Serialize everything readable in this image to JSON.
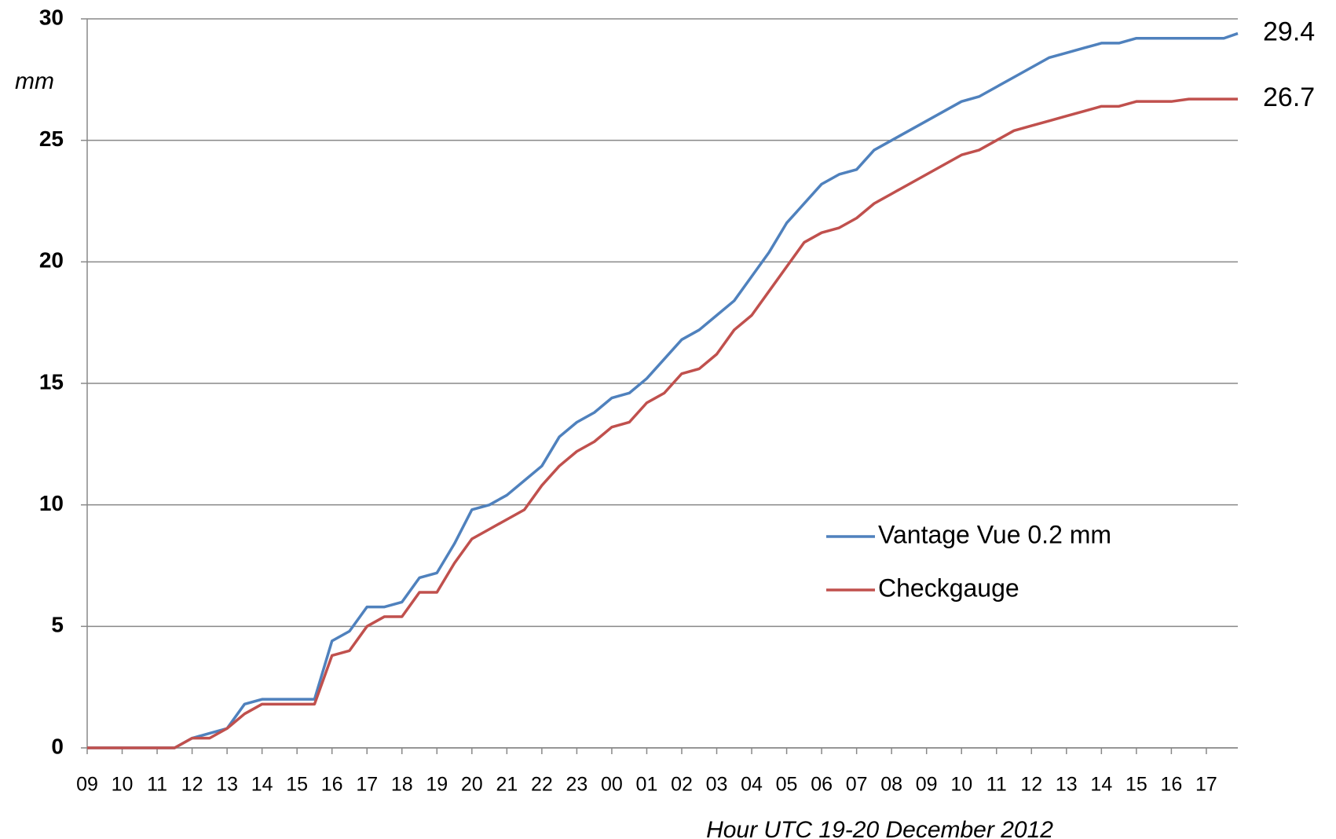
{
  "chart_data": {
    "type": "line",
    "y_label": "mm",
    "x_label": "Hour UTC 19-20 December 2012",
    "x": [
      0,
      2.5,
      3,
      3.5,
      4,
      4.5,
      5,
      6.5,
      7,
      7.5,
      8,
      8.5,
      9,
      9.5,
      10,
      10.5,
      11,
      11.5,
      12,
      12.5,
      13,
      13.5,
      14,
      14.5,
      15,
      15.5,
      16,
      16.5,
      17,
      17.5,
      18,
      18.5,
      19,
      19.5,
      20,
      20.5,
      21,
      21.5,
      22,
      22.5,
      23,
      23.5,
      24,
      24.5,
      25,
      25.5,
      26,
      26.5,
      27,
      27.5,
      28,
      28.5,
      29,
      29.5,
      30,
      30.5,
      31,
      31.5,
      32,
      32.5,
      32.9
    ],
    "series": [
      {
        "name": "Vantage Vue 0.2 mm",
        "color": "#4f81bd",
        "values": [
          0,
          0,
          0.4,
          0.6,
          0.8,
          1.8,
          2.0,
          2.0,
          4.4,
          4.8,
          5.8,
          5.8,
          6.0,
          7.0,
          7.2,
          8.4,
          9.8,
          10.0,
          10.4,
          11.0,
          11.6,
          12.8,
          13.4,
          13.8,
          14.4,
          14.6,
          15.2,
          16.0,
          16.8,
          17.2,
          17.8,
          18.4,
          19.4,
          20.4,
          21.6,
          22.4,
          23.2,
          23.6,
          23.8,
          24.6,
          25.0,
          25.4,
          25.8,
          26.2,
          26.6,
          26.8,
          27.2,
          27.6,
          28.0,
          28.4,
          28.6,
          28.8,
          29.0,
          29.0,
          29.2,
          29.2,
          29.2,
          29.2,
          29.2,
          29.2,
          29.4
        ]
      },
      {
        "name": "Checkgauge",
        "color": "#c0504d",
        "values": [
          0,
          0,
          0.4,
          0.4,
          0.8,
          1.4,
          1.8,
          1.8,
          3.8,
          4.0,
          5.0,
          5.4,
          5.4,
          6.4,
          6.4,
          7.6,
          8.6,
          9.0,
          9.4,
          9.8,
          10.8,
          11.6,
          12.2,
          12.6,
          13.2,
          13.4,
          14.2,
          14.6,
          15.4,
          15.6,
          16.2,
          17.2,
          17.8,
          18.8,
          19.8,
          20.8,
          21.2,
          21.4,
          21.8,
          22.4,
          22.8,
          23.2,
          23.6,
          24.0,
          24.4,
          24.6,
          25.0,
          25.4,
          25.6,
          25.8,
          26.0,
          26.2,
          26.4,
          26.4,
          26.6,
          26.6,
          26.6,
          26.7,
          26.7,
          26.7,
          26.7
        ]
      }
    ],
    "xlim": [
      0,
      32.9
    ],
    "xticks": [
      {
        "value": 0,
        "label": "09"
      },
      {
        "value": 1,
        "label": "10"
      },
      {
        "value": 2,
        "label": "11"
      },
      {
        "value": 3,
        "label": "12"
      },
      {
        "value": 4,
        "label": "13"
      },
      {
        "value": 5,
        "label": "14"
      },
      {
        "value": 6,
        "label": "15"
      },
      {
        "value": 7,
        "label": "16"
      },
      {
        "value": 8,
        "label": "17"
      },
      {
        "value": 9,
        "label": "18"
      },
      {
        "value": 10,
        "label": "19"
      },
      {
        "value": 11,
        "label": "20"
      },
      {
        "value": 12,
        "label": "21"
      },
      {
        "value": 13,
        "label": "22"
      },
      {
        "value": 14,
        "label": "23"
      },
      {
        "value": 15,
        "label": "00"
      },
      {
        "value": 16,
        "label": "01"
      },
      {
        "value": 17,
        "label": "02"
      },
      {
        "value": 18,
        "label": "03"
      },
      {
        "value": 19,
        "label": "04"
      },
      {
        "value": 20,
        "label": "05"
      },
      {
        "value": 21,
        "label": "06"
      },
      {
        "value": 22,
        "label": "07"
      },
      {
        "value": 23,
        "label": "08"
      },
      {
        "value": 24,
        "label": "09"
      },
      {
        "value": 25,
        "label": "10"
      },
      {
        "value": 26,
        "label": "11"
      },
      {
        "value": 27,
        "label": "12"
      },
      {
        "value": 28,
        "label": "13"
      },
      {
        "value": 29,
        "label": "14"
      },
      {
        "value": 30,
        "label": "15"
      },
      {
        "value": 31,
        "label": "16"
      },
      {
        "value": 32,
        "label": "17"
      }
    ],
    "ylim": [
      0,
      30
    ],
    "yticks": [
      0,
      5,
      10,
      15,
      20,
      25,
      30
    ],
    "grid": true,
    "legend": "right",
    "end_labels": true
  }
}
